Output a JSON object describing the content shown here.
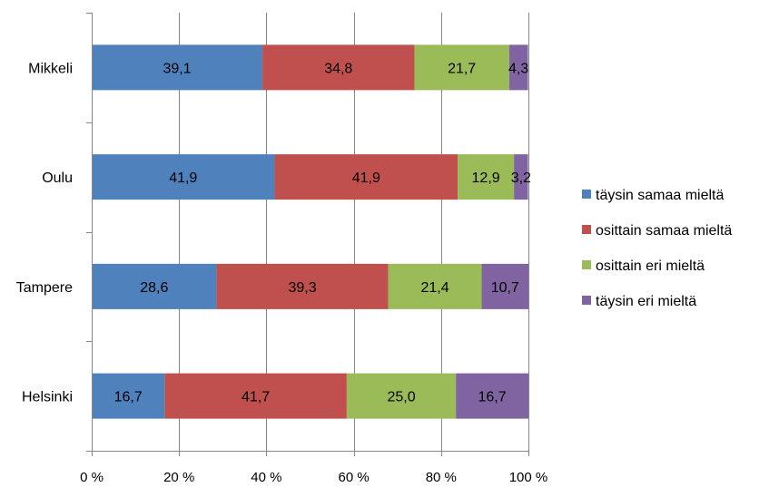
{
  "chart_data": {
    "type": "bar",
    "orientation": "horizontal",
    "stacking": "percent",
    "categories": [
      "Mikkeli",
      "Oulu",
      "Tampere",
      "Helsinki"
    ],
    "series": [
      {
        "name": "täysin samaa mieltä",
        "color": "#4f81bd",
        "values": [
          39.1,
          41.9,
          28.6,
          16.7
        ],
        "labels": [
          "39,1",
          "41,9",
          "28,6",
          "16,7"
        ]
      },
      {
        "name": "osittain samaa mieltä",
        "color": "#c0504d",
        "values": [
          34.8,
          41.9,
          39.3,
          41.7
        ],
        "labels": [
          "34,8",
          "41,9",
          "39,3",
          "41,7"
        ]
      },
      {
        "name": "osittain eri mieltä",
        "color": "#9bbb59",
        "values": [
          21.7,
          12.9,
          21.4,
          25.0
        ],
        "labels": [
          "21,7",
          "12,9",
          "21,4",
          "25,0"
        ]
      },
      {
        "name": "täysin eri mieltä",
        "color": "#8064a2",
        "values": [
          4.3,
          3.2,
          10.7,
          16.7
        ],
        "labels": [
          "4,3",
          "3,2",
          "10,7",
          "16,7"
        ]
      }
    ],
    "xlim": [
      0,
      100
    ],
    "x_ticks": [
      0,
      20,
      40,
      60,
      80,
      100
    ],
    "x_tick_labels": [
      "0 %",
      "20 %",
      "40 %",
      "60 %",
      "80 %",
      "100 %"
    ],
    "grid": "vertical",
    "legend": "right",
    "title": "",
    "xlabel": "",
    "ylabel": ""
  }
}
